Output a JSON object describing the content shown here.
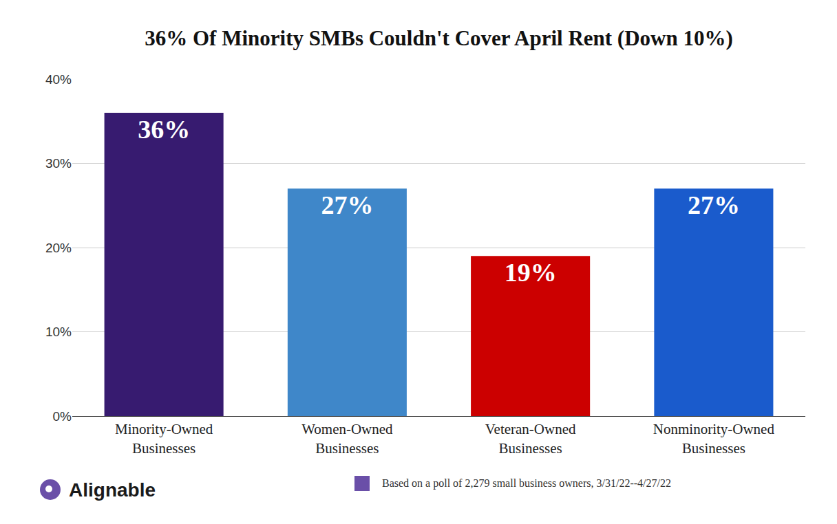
{
  "chart_data": {
    "type": "bar",
    "title": "36% Of Minority SMBs Couldn't Cover April Rent (Down 10%)",
    "categories": [
      "Minority-Owned Businesses",
      "Women-Owned Businesses",
      "Veteran-Owned Businesses",
      "Nonminority-Owned Businesses"
    ],
    "values": [
      36,
      27,
      19,
      27
    ],
    "value_labels": [
      "36%",
      "27%",
      "19%",
      "27%"
    ],
    "colors": [
      "#371b70",
      "#3f87c9",
      "#cc0000",
      "#1a5bcc"
    ],
    "data_labels": true,
    "ylim": [
      0,
      40
    ],
    "yticks": [
      {
        "value": 0,
        "label": "0%"
      },
      {
        "value": 10,
        "label": "10%"
      },
      {
        "value": 20,
        "label": "20%"
      },
      {
        "value": 30,
        "label": "30%"
      },
      {
        "value": 40,
        "label": "40%"
      }
    ],
    "grid": true,
    "annotations": [
      "Alignable",
      "Based on a poll of 2,279 small business owners, 3/31/22--4/27/22"
    ]
  }
}
